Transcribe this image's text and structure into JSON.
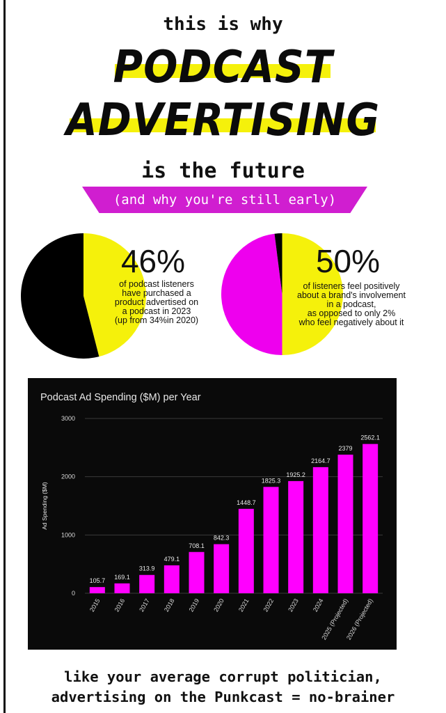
{
  "header": {
    "intro": "this is why",
    "headline_line1": "PODCAST",
    "headline_line2": "ADVERTISING",
    "subtitle": "is the future",
    "banner": "(and why you're still early)"
  },
  "colors": {
    "accent": "#d01ed0",
    "highlight": "#f5f10b",
    "pie_yellow": "#f5f10b",
    "pie_black": "#000000",
    "pie_magenta": "#ee00ee",
    "bar": "#ff00ff",
    "chart_bg": "#0a0a0a"
  },
  "stats": [
    {
      "value": "46%",
      "lines": [
        "of podcast listeners",
        "have purchased a",
        "product advertised on",
        "a podcast in 2023",
        "(up from 34%in 2020)"
      ],
      "pie": [
        {
          "label": "yellow",
          "value": 46
        },
        {
          "label": "black",
          "value": 54
        }
      ]
    },
    {
      "value": "50%",
      "lines": [
        "of listeners feel positively",
        "about a brand's involvement",
        "in a podcast,",
        "as opposed to only 2%",
        "who feel negatively about it"
      ],
      "pie": [
        {
          "label": "yellow",
          "value": 50
        },
        {
          "label": "magenta",
          "value": 48
        },
        {
          "label": "black",
          "value": 2
        }
      ]
    }
  ],
  "chart_data": {
    "type": "bar",
    "title": "Podcast Ad Spending ($M) per Year",
    "xlabel": "",
    "ylabel": "Ad Spending ($M)",
    "ylim": [
      0,
      3000
    ],
    "yticks": [
      0,
      1000,
      2000,
      3000
    ],
    "grid": true,
    "categories": [
      "2015",
      "2016",
      "2017",
      "2018",
      "2019",
      "2020",
      "2021",
      "2022",
      "2023",
      "2024",
      "2025 (Projected)",
      "2026 (Projected)"
    ],
    "values": [
      105.7,
      169.1,
      313.9,
      479.1,
      708.1,
      842.3,
      1448.7,
      1825.3,
      1925.2,
      2164.7,
      2379,
      2562.1
    ],
    "data_labels": [
      "105.7",
      "169.1",
      "313.9",
      "479.1",
      "708.1",
      "842.3",
      "1448.7",
      "1825.3",
      "1925.2",
      "2164.7",
      "2379",
      "2562.1"
    ]
  },
  "footer": {
    "line1": "like your average corrupt politician,",
    "line2": "advertising on the Punkcast = no-brainer"
  }
}
